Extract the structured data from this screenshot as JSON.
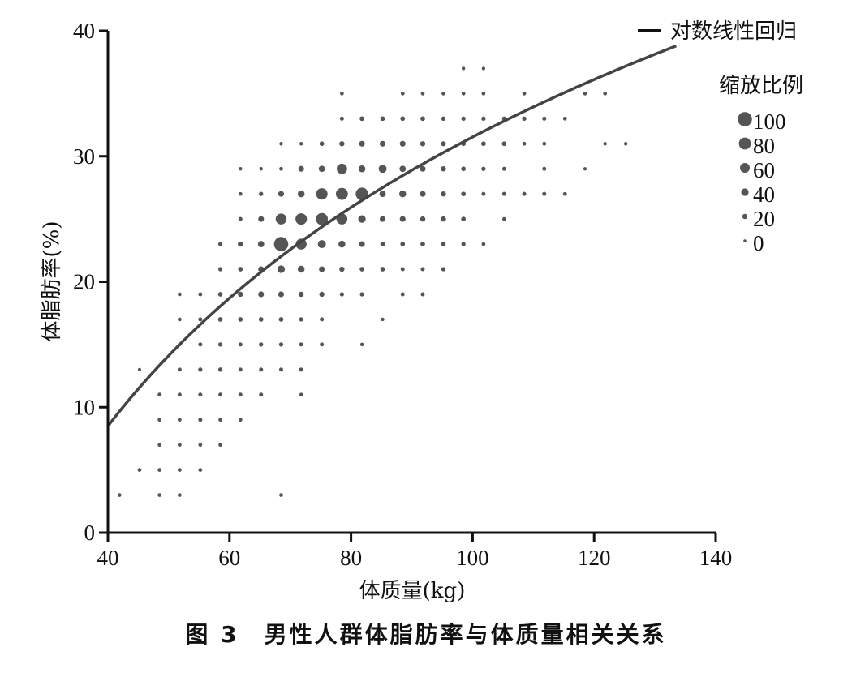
{
  "chart_data": {
    "type": "scatter",
    "caption": "图 3　男性人群体脂肪率与体质量相关关系",
    "xlabel": "体质量(kg)",
    "ylabel": "体脂肪率(%)",
    "xlim": [
      40,
      140
    ],
    "ylim": [
      0,
      40
    ],
    "xticks": [
      40,
      60,
      80,
      100,
      120,
      140
    ],
    "yticks": [
      0,
      10,
      20,
      30,
      40
    ],
    "grid": false,
    "point_color": "#555555",
    "line_color": "#444444",
    "regression": {
      "name": "对数线性回归",
      "form": "log",
      "a": -84.24,
      "b": 25.14,
      "x_range": [
        40,
        133.5
      ]
    },
    "size_legend": {
      "title": "缩放比例",
      "values": [
        100,
        80,
        60,
        40,
        20,
        0
      ],
      "labels": [
        "100",
        "80",
        "60",
        "40",
        "20",
        "0"
      ]
    },
    "legend_position": "top-right",
    "rows": [
      {
        "y": 37,
        "x": [
          98.5,
          101.8
        ],
        "size": [
          5,
          5
        ]
      },
      {
        "y": 35,
        "x": [
          78.5,
          88.5,
          91.8,
          95.2,
          98.5,
          101.8,
          108.5,
          118.5,
          121.8
        ],
        "size": [
          8,
          8,
          8,
          8,
          8,
          8,
          8,
          8,
          8
        ]
      },
      {
        "y": 33,
        "x": [
          78.5,
          81.8,
          85.2,
          88.5,
          91.8,
          95.2,
          98.5,
          101.8,
          105.2,
          108.5,
          111.8,
          115.2
        ],
        "size": [
          10,
          15,
          15,
          15,
          15,
          12,
          12,
          12,
          12,
          12,
          10,
          8
        ]
      },
      {
        "y": 31,
        "x": [
          68.5,
          71.8,
          75.2,
          78.5,
          81.8,
          85.2,
          88.5,
          91.8,
          95.2,
          98.5,
          101.8,
          105.2,
          108.5,
          111.8,
          121.8,
          125.2
        ],
        "size": [
          6,
          6,
          15,
          20,
          25,
          25,
          25,
          20,
          18,
          15,
          15,
          15,
          8,
          8,
          6,
          6
        ]
      },
      {
        "y": 29,
        "x": [
          61.8,
          65.2,
          68.5,
          71.8,
          75.2,
          78.5,
          81.8,
          85.2,
          88.5,
          91.8,
          95.2,
          98.5,
          101.8,
          105.2,
          111.8,
          118.5
        ],
        "size": [
          6,
          6,
          8,
          25,
          30,
          65,
          35,
          45,
          30,
          25,
          20,
          15,
          12,
          10,
          10,
          5
        ]
      },
      {
        "y": 27,
        "x": [
          61.8,
          65.2,
          68.5,
          71.8,
          75.2,
          78.5,
          81.8,
          85.2,
          88.5,
          91.8,
          95.2,
          98.5,
          101.8,
          105.2,
          108.5,
          111.8,
          115.2
        ],
        "size": [
          8,
          12,
          25,
          35,
          75,
          80,
          85,
          30,
          35,
          25,
          20,
          15,
          10,
          10,
          10,
          10,
          8
        ]
      },
      {
        "y": 25,
        "x": [
          61.8,
          65.2,
          68.5,
          71.8,
          75.2,
          78.5,
          81.8,
          85.2,
          88.5,
          91.8,
          95.2,
          98.5,
          105.2
        ],
        "size": [
          10,
          25,
          70,
          75,
          80,
          70,
          40,
          25,
          25,
          20,
          20,
          15,
          8
        ]
      },
      {
        "y": 23,
        "x": [
          58.5,
          61.8,
          65.2,
          68.5,
          71.8,
          75.2,
          78.5,
          81.8,
          85.2,
          88.5,
          91.8,
          95.2,
          98.5,
          101.8
        ],
        "size": [
          12,
          20,
          30,
          100,
          70,
          45,
          35,
          25,
          15,
          15,
          15,
          15,
          12,
          8
        ]
      },
      {
        "y": 21,
        "x": [
          58.5,
          61.8,
          65.2,
          68.5,
          71.8,
          75.2,
          78.5,
          81.8,
          85.2,
          88.5,
          91.8,
          95.2
        ],
        "size": [
          12,
          15,
          25,
          40,
          35,
          25,
          20,
          15,
          15,
          10,
          10,
          12
        ]
      },
      {
        "y": 19,
        "x": [
          51.8,
          55.2,
          58.5,
          61.8,
          65.2,
          68.5,
          71.8,
          75.2,
          78.5,
          81.8,
          88.5,
          91.8
        ],
        "size": [
          8,
          10,
          15,
          20,
          25,
          25,
          20,
          20,
          12,
          12,
          10,
          10
        ]
      },
      {
        "y": 17,
        "x": [
          51.8,
          55.2,
          58.5,
          61.8,
          65.2,
          68.5,
          71.8,
          75.2,
          85.2
        ],
        "size": [
          8,
          10,
          15,
          15,
          15,
          15,
          12,
          10,
          6
        ]
      },
      {
        "y": 15,
        "x": [
          51.8,
          55.2,
          58.5,
          61.8,
          65.2,
          68.5,
          71.8,
          75.2,
          81.8
        ],
        "size": [
          8,
          10,
          12,
          10,
          12,
          12,
          10,
          10,
          6
        ]
      },
      {
        "y": 13,
        "x": [
          45.2,
          51.8,
          55.2,
          58.5,
          61.8,
          65.2,
          68.5,
          71.8
        ],
        "size": [
          4,
          10,
          12,
          12,
          10,
          10,
          10,
          10
        ]
      },
      {
        "y": 11,
        "x": [
          48.5,
          51.8,
          55.2,
          58.5,
          61.8,
          65.2,
          71.8
        ],
        "size": [
          10,
          10,
          10,
          10,
          10,
          10,
          8
        ]
      },
      {
        "y": 9,
        "x": [
          48.5,
          51.8,
          55.2,
          58.5,
          61.8
        ],
        "size": [
          8,
          8,
          10,
          8,
          8
        ]
      },
      {
        "y": 7,
        "x": [
          48.5,
          51.8,
          55.2,
          58.5
        ],
        "size": [
          8,
          8,
          8,
          8
        ]
      },
      {
        "y": 5,
        "x": [
          45.2,
          48.5,
          51.8,
          55.2
        ],
        "size": [
          8,
          8,
          8,
          8
        ]
      },
      {
        "y": 3,
        "x": [
          41.9,
          48.5,
          51.8,
          68.5
        ],
        "size": [
          8,
          8,
          8,
          8
        ]
      }
    ]
  }
}
